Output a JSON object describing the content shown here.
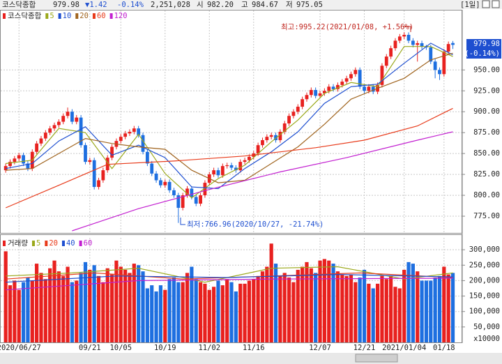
{
  "header": {
    "name": "코스닥종합",
    "price": "979.98",
    "change": "▼1.42",
    "change_pct": "-0.14%",
    "volume": "2,251,028",
    "open_label": "시",
    "open": "982.20",
    "high_label": "고",
    "high": "984.67",
    "low_label": "저",
    "low": "975.05",
    "period": "[1일]"
  },
  "chart_data": [
    {
      "type": "candlestick",
      "title": "코스닥종합",
      "up_color": "#e8211f",
      "down_color": "#1e6fe0",
      "categories": [
        null,
        null,
        null,
        "2020/06/27",
        null,
        null,
        null,
        null,
        null,
        null,
        null,
        null,
        null,
        null,
        null,
        null,
        null,
        null,
        null,
        "09/21",
        null,
        null,
        null,
        null,
        null,
        null,
        "10/05",
        null,
        null,
        null,
        null,
        null,
        null,
        null,
        null,
        null,
        "10/19",
        null,
        null,
        null,
        null,
        null,
        null,
        null,
        null,
        null,
        "11/02",
        null,
        null,
        null,
        null,
        null,
        null,
        null,
        null,
        null,
        "11/16",
        null,
        null,
        null,
        null,
        null,
        null,
        null,
        null,
        null,
        null,
        null,
        null,
        null,
        null,
        "12/07",
        null,
        null,
        null,
        null,
        null,
        null,
        null,
        null,
        null,
        "12/21",
        null,
        null,
        null,
        null,
        null,
        null,
        null,
        null,
        "2021/01/04",
        null,
        null,
        null,
        null,
        null,
        null,
        null,
        null,
        "01/18",
        null,
        null
      ],
      "ohlc": [
        [
          830,
          838,
          827,
          835
        ],
        [
          835,
          843,
          832,
          840
        ],
        [
          840,
          847,
          837,
          844
        ],
        [
          844,
          851,
          841,
          848
        ],
        [
          848,
          851,
          835,
          838
        ],
        [
          838,
          841,
          829,
          832
        ],
        [
          832,
          855,
          829,
          852
        ],
        [
          852,
          865,
          849,
          862
        ],
        [
          862,
          871,
          859,
          868
        ],
        [
          868,
          878,
          865,
          875
        ],
        [
          875,
          883,
          872,
          880
        ],
        [
          880,
          887,
          877,
          884
        ],
        [
          884,
          891,
          881,
          888
        ],
        [
          888,
          898,
          885,
          895
        ],
        [
          895,
          905,
          892,
          900
        ],
        [
          900,
          903,
          885,
          888
        ],
        [
          888,
          896,
          885,
          893
        ],
        [
          893,
          896,
          857,
          860
        ],
        [
          860,
          863,
          837,
          840
        ],
        [
          840,
          845,
          837,
          842
        ],
        [
          842,
          845,
          807,
          810
        ],
        [
          810,
          821,
          807,
          818
        ],
        [
          818,
          833,
          815,
          830
        ],
        [
          830,
          848,
          827,
          845
        ],
        [
          845,
          861,
          842,
          858
        ],
        [
          858,
          868,
          855,
          865
        ],
        [
          865,
          873,
          862,
          870
        ],
        [
          870,
          877,
          867,
          874
        ],
        [
          874,
          879,
          871,
          876
        ],
        [
          876,
          883,
          873,
          880
        ],
        [
          880,
          883,
          869,
          872
        ],
        [
          872,
          875,
          849,
          852
        ],
        [
          852,
          855,
          835,
          838
        ],
        [
          838,
          841,
          823,
          826
        ],
        [
          826,
          829,
          815,
          818
        ],
        [
          818,
          821,
          809,
          812
        ],
        [
          812,
          819,
          809,
          816
        ],
        [
          816,
          819,
          803,
          806
        ],
        [
          806,
          809,
          797,
          800
        ],
        [
          800,
          803,
          766.96,
          785
        ],
        [
          785,
          803,
          782,
          800
        ],
        [
          800,
          811,
          797,
          808
        ],
        [
          808,
          811,
          795,
          798
        ],
        [
          798,
          801,
          787,
          790
        ],
        [
          790,
          803,
          787,
          800
        ],
        [
          800,
          818,
          797,
          815
        ],
        [
          815,
          828,
          812,
          825
        ],
        [
          825,
          833,
          822,
          830
        ],
        [
          830,
          833,
          821,
          824
        ],
        [
          824,
          838,
          821,
          835
        ],
        [
          835,
          839,
          832,
          836
        ],
        [
          836,
          839,
          830,
          833
        ],
        [
          833,
          836,
          827,
          830
        ],
        [
          830,
          843,
          827,
          840
        ],
        [
          840,
          845,
          837,
          842
        ],
        [
          842,
          849,
          839,
          846
        ],
        [
          846,
          853,
          843,
          850
        ],
        [
          850,
          863,
          847,
          860
        ],
        [
          860,
          869,
          857,
          866
        ],
        [
          866,
          873,
          863,
          870
        ],
        [
          870,
          875,
          867,
          872
        ],
        [
          872,
          875,
          863,
          866
        ],
        [
          866,
          879,
          863,
          876
        ],
        [
          876,
          889,
          873,
          886
        ],
        [
          886,
          898,
          883,
          895
        ],
        [
          895,
          903,
          892,
          900
        ],
        [
          900,
          909,
          897,
          906
        ],
        [
          906,
          918,
          903,
          915
        ],
        [
          915,
          923,
          912,
          920
        ],
        [
          920,
          929,
          917,
          926
        ],
        [
          926,
          929,
          916,
          919
        ],
        [
          919,
          925,
          916,
          922
        ],
        [
          922,
          928,
          919,
          925
        ],
        [
          925,
          933,
          922,
          930
        ],
        [
          930,
          933,
          924,
          927
        ],
        [
          927,
          935,
          924,
          932
        ],
        [
          932,
          939,
          929,
          936
        ],
        [
          936,
          943,
          933,
          940
        ],
        [
          940,
          948,
          937,
          945
        ],
        [
          945,
          953,
          942,
          950
        ],
        [
          950,
          953,
          927,
          930
        ],
        [
          930,
          933,
          922,
          925
        ],
        [
          925,
          933,
          922,
          930
        ],
        [
          930,
          933,
          921,
          924
        ],
        [
          924,
          935,
          921,
          932
        ],
        [
          932,
          958,
          929,
          955
        ],
        [
          955,
          969,
          952,
          966
        ],
        [
          966,
          979,
          963,
          976
        ],
        [
          976,
          988,
          973,
          985
        ],
        [
          985,
          993,
          982,
          990
        ],
        [
          990,
          995.22,
          987,
          992
        ],
        [
          992,
          995,
          982,
          985
        ],
        [
          985,
          988,
          977,
          980
        ],
        [
          980,
          985,
          960,
          982
        ],
        [
          982,
          985,
          975,
          978
        ],
        [
          978,
          980,
          974,
          977
        ],
        [
          977,
          980,
          957,
          960
        ],
        [
          960,
          963,
          940,
          950
        ],
        [
          950,
          953,
          938,
          945
        ],
        [
          945,
          975,
          942,
          972
        ],
        [
          972,
          984,
          969,
          981
        ],
        [
          982.2,
          984.67,
          975.05,
          979.98
        ]
      ],
      "lines": [
        {
          "name": "5",
          "color": "#9aa81a",
          "x": [
            0,
            6,
            12,
            18,
            24,
            30,
            36,
            42,
            48,
            54,
            60,
            66,
            72,
            78,
            84,
            90,
            96,
            101
          ],
          "values": [
            838,
            842,
            880,
            875,
            832,
            873,
            826,
            797,
            820,
            836,
            864,
            890,
            922,
            935,
            930,
            978,
            978,
            966
          ]
        },
        {
          "name": "10",
          "color": "#1e4fd0",
          "x": [
            0,
            6,
            12,
            18,
            24,
            30,
            36,
            42,
            48,
            54,
            60,
            66,
            72,
            78,
            84,
            90,
            96,
            101
          ],
          "values": [
            832,
            838,
            865,
            882,
            848,
            860,
            845,
            810,
            808,
            832,
            852,
            876,
            910,
            930,
            933,
            958,
            982,
            968
          ]
        },
        {
          "name": "20",
          "color": "#a0641e",
          "x": [
            0,
            6,
            12,
            18,
            24,
            30,
            36,
            42,
            48,
            54,
            60,
            66,
            72,
            78,
            84,
            90,
            96,
            101
          ],
          "values": [
            830,
            832,
            850,
            868,
            862,
            858,
            855,
            830,
            815,
            818,
            838,
            858,
            885,
            915,
            928,
            940,
            962,
            970
          ]
        },
        {
          "name": "60",
          "color": "#e83a1a",
          "x": [
            0,
            12,
            23,
            38,
            54,
            70,
            81,
            93,
            101
          ],
          "values": [
            785,
            812,
            837,
            841,
            847,
            857,
            866,
            883,
            904
          ]
        },
        {
          "name": "120",
          "color": "#c21fd0",
          "x": [
            15,
            30,
            46,
            62,
            77,
            93,
            101
          ],
          "values": [
            757.5,
            784,
            807,
            828,
            845,
            866,
            876
          ]
        }
      ],
      "ylim": [
        755,
        1022
      ],
      "yticks": [
        {
          "value": 775,
          "label": "775.00"
        },
        {
          "value": 800,
          "label": "800.00"
        },
        {
          "value": 825,
          "label": "825.00"
        },
        {
          "value": 850,
          "label": "850.00"
        },
        {
          "value": 875,
          "label": "875.00"
        },
        {
          "value": 900,
          "label": "900.00"
        },
        {
          "value": 925,
          "label": "925.00"
        },
        {
          "value": 950,
          "label": "950.00"
        }
      ],
      "grid": true,
      "annotations": {
        "high": "최고:995.22(2021/01/08, +1.56%)",
        "low": "최저:766.96(2020/10/27, -21.74%)",
        "last_price": "979.98",
        "last_change": "(-0.14%)"
      }
    },
    {
      "type": "bar",
      "title": "거래량",
      "values": [
        295000,
        185000,
        200000,
        170000,
        195000,
        210000,
        200000,
        255000,
        225000,
        205000,
        240000,
        265000,
        230000,
        215000,
        245000,
        195000,
        200000,
        225000,
        260000,
        235000,
        250000,
        215000,
        195000,
        240000,
        220000,
        265000,
        245000,
        235000,
        225000,
        255000,
        250000,
        230000,
        175000,
        185000,
        165000,
        185000,
        170000,
        205000,
        210000,
        195000,
        195000,
        225000,
        245000,
        205000,
        195000,
        190000,
        170000,
        180000,
        200000,
        185000,
        205000,
        195000,
        165000,
        190000,
        190000,
        200000,
        205000,
        215000,
        230000,
        245000,
        320000,
        255000,
        215000,
        225000,
        210000,
        195000,
        235000,
        245000,
        260000,
        240000,
        225000,
        265000,
        270000,
        265000,
        255000,
        230000,
        220000,
        215000,
        220000,
        195000,
        210000,
        235000,
        190000,
        175000,
        190000,
        215000,
        205000,
        215000,
        180000,
        175000,
        235000,
        260000,
        255000,
        230000,
        200000,
        200000,
        200000,
        210000,
        215000,
        245000,
        220000,
        225000
      ],
      "lines": [
        {
          "name": "5",
          "color": "#9aa81a",
          "x": [
            0,
            15,
            30,
            45,
            60,
            75,
            90,
            101
          ],
          "values": [
            215000,
            225000,
            240000,
            195000,
            240000,
            245000,
            205000,
            225000
          ]
        },
        {
          "name": "20",
          "color": "#e83a1a",
          "x": [
            0,
            20,
            40,
            60,
            80,
            101
          ],
          "values": [
            205000,
            225000,
            205000,
            215000,
            225000,
            210000
          ]
        },
        {
          "name": "40",
          "color": "#1e4fd0",
          "x": [
            0,
            25,
            50,
            75,
            101
          ],
          "values": [
            195000,
            215000,
            210000,
            220000,
            212000
          ]
        },
        {
          "name": "60",
          "color": "#c21fd0",
          "x": [
            0,
            30,
            60,
            101
          ],
          "values": [
            170000,
            200000,
            205000,
            208000
          ]
        }
      ],
      "ylim": [
        0,
        341000
      ],
      "yticks": [
        {
          "value": 50000,
          "label": "50,000"
        },
        {
          "value": 100000,
          "label": "100,000"
        },
        {
          "value": 150000,
          "label": "150,000"
        },
        {
          "value": 200000,
          "label": "200,000"
        },
        {
          "value": 250000,
          "label": "250,000"
        },
        {
          "value": 300000,
          "label": "300,000"
        }
      ],
      "unit_label": "x10000",
      "grid": true
    }
  ]
}
